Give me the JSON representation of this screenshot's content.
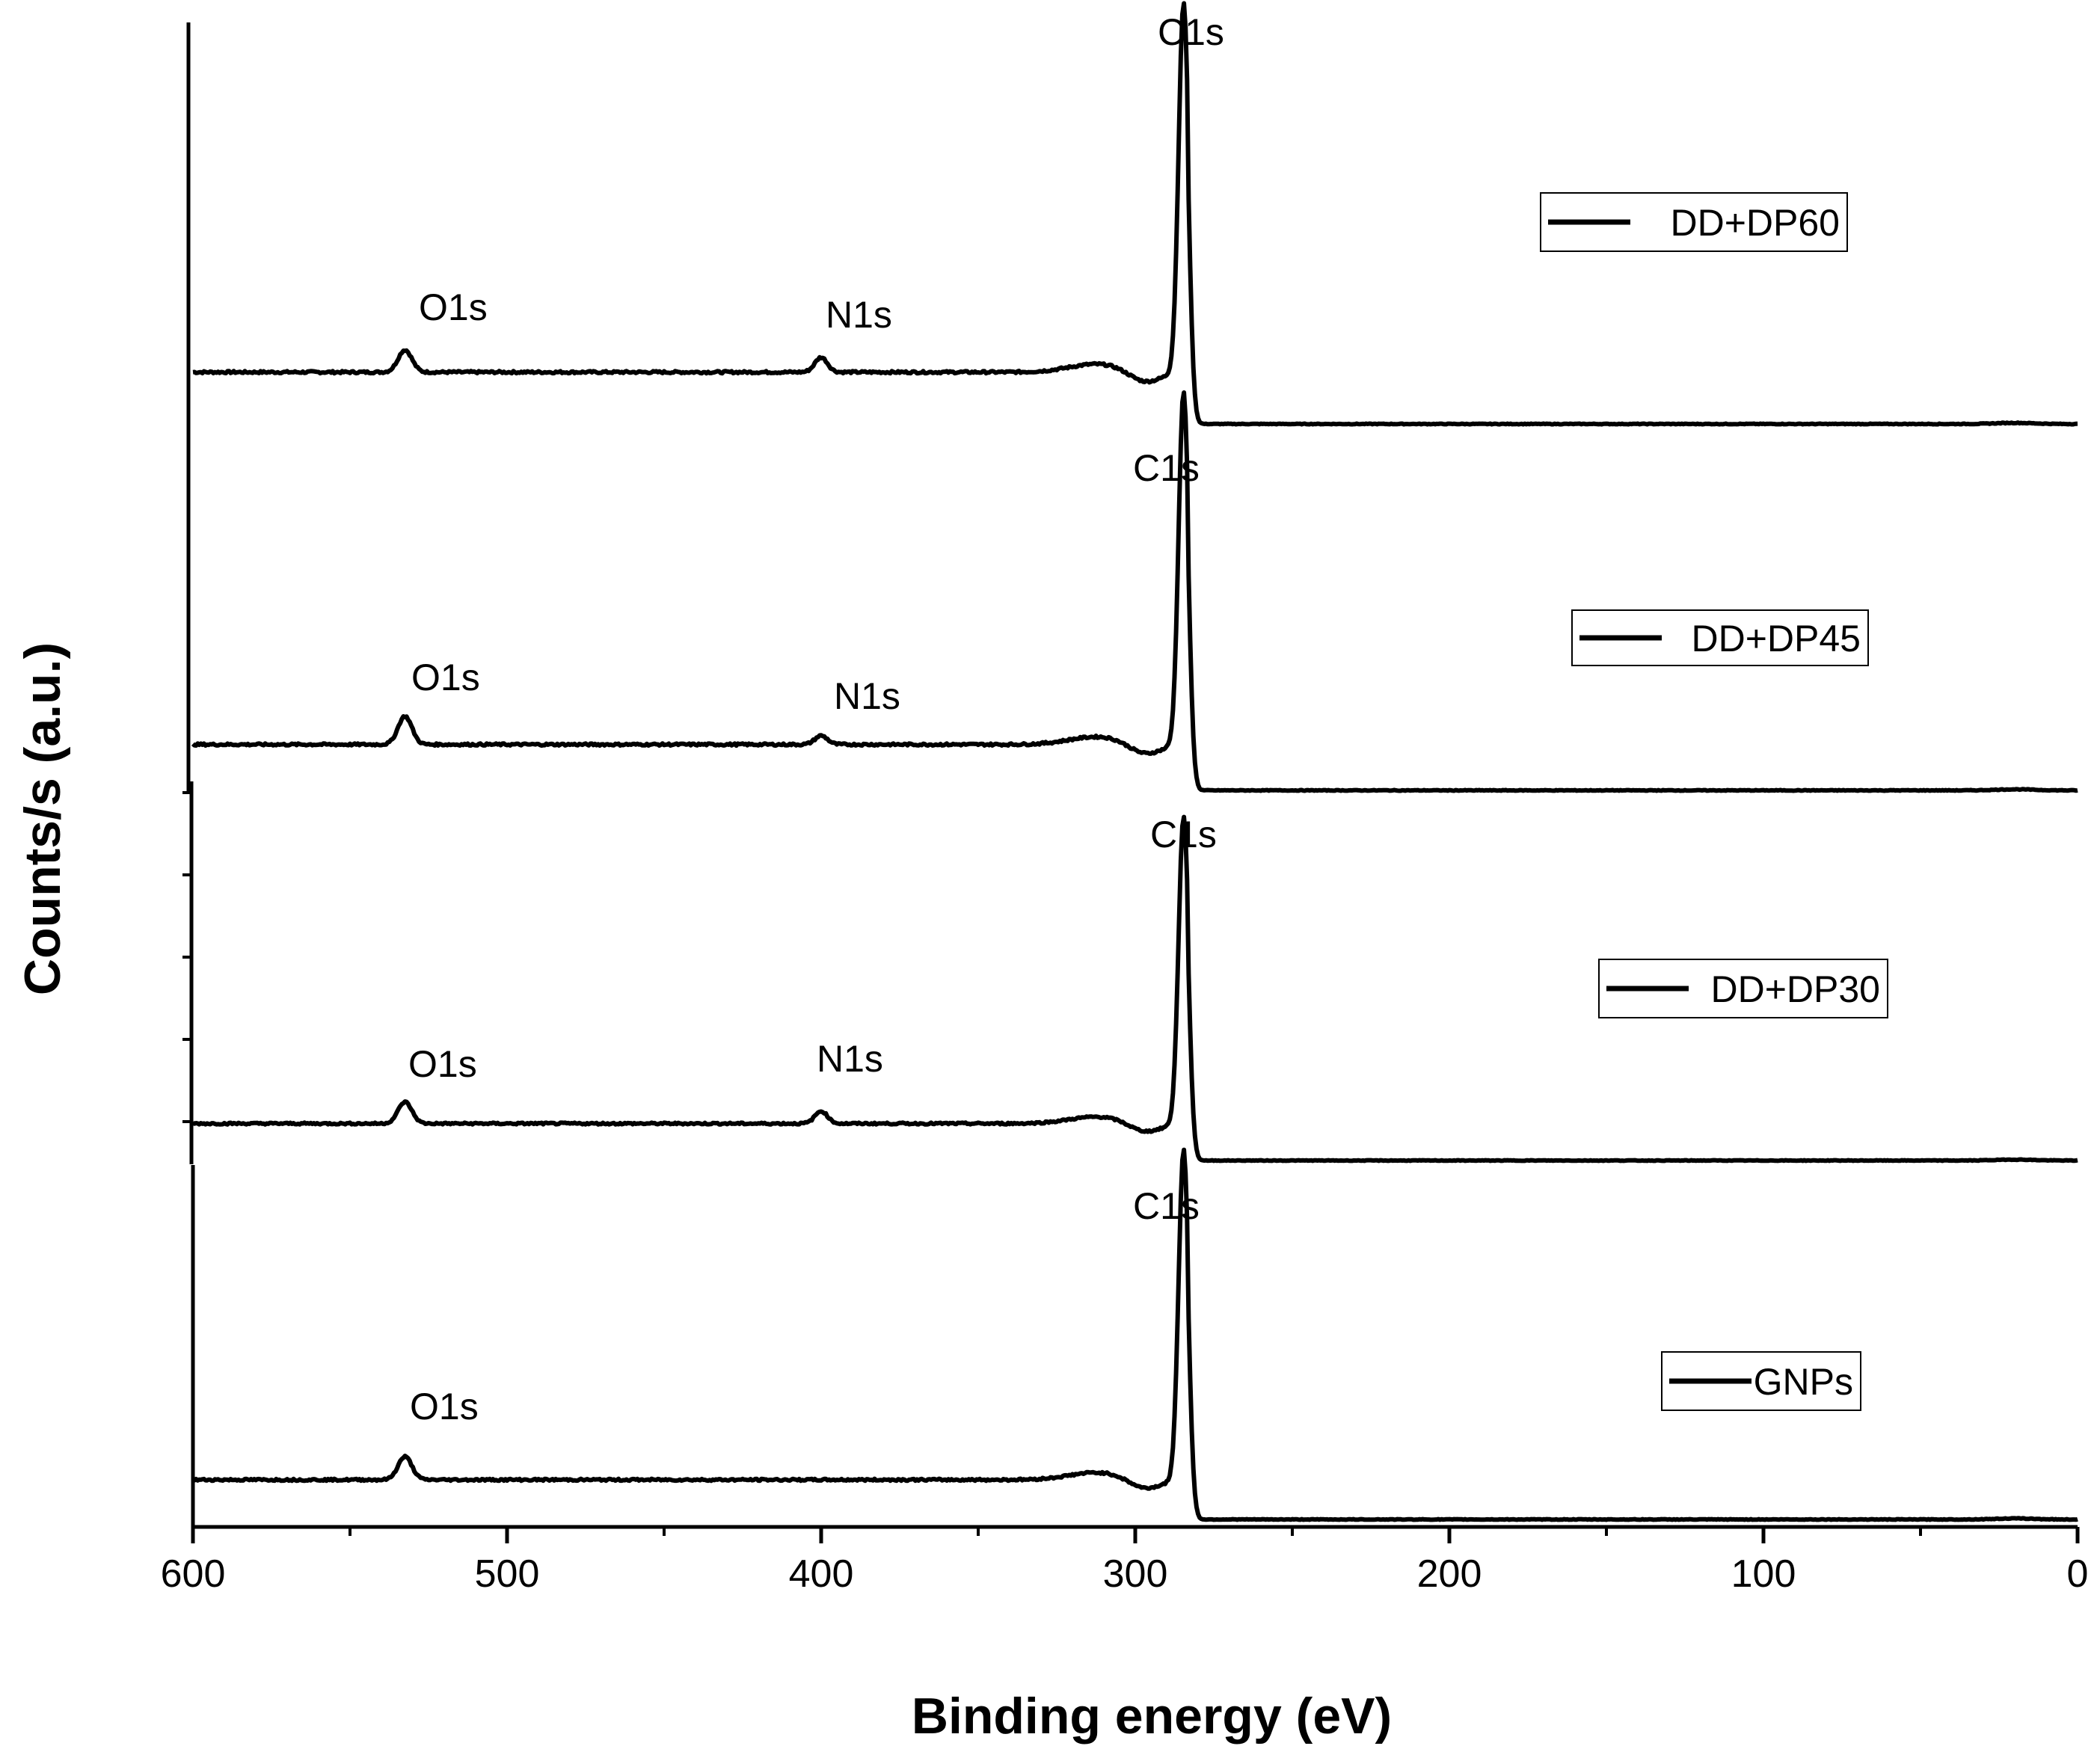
{
  "chart_data": {
    "type": "line",
    "title": "",
    "xlabel": "Binding energy (eV)",
    "ylabel": "Counts/s (a.u.)",
    "xlim": [
      600,
      0
    ],
    "x_reversed": true,
    "x_ticks": [
      600,
      500,
      400,
      300,
      200,
      100,
      0
    ],
    "x_tick_labels": [
      "600",
      "500",
      "400",
      "300",
      "200",
      "100",
      "0"
    ],
    "y_tick_labels": false,
    "grid": false,
    "stacked_offset_panels": true,
    "legend_placement": "right, one box per panel",
    "series": [
      {
        "name": "DD+DP60",
        "baseline_low_energy": 0.0,
        "baseline_high_energy": 0.14,
        "peaks": [
          {
            "label": "C1s",
            "energy": 284.6,
            "height": 1.0
          },
          {
            "label": "N1s",
            "energy": 400.0,
            "height": 0.04
          },
          {
            "label": "O1s",
            "energy": 532.5,
            "height": 0.06
          }
        ]
      },
      {
        "name": "DD+DP45",
        "baseline_low_energy": 0.0,
        "baseline_high_energy": 0.13,
        "peaks": [
          {
            "label": "C1s",
            "energy": 284.6,
            "height": 1.0
          },
          {
            "label": "N1s",
            "energy": 400.0,
            "height": 0.025
          },
          {
            "label": "O1s",
            "energy": 532.5,
            "height": 0.08
          }
        ]
      },
      {
        "name": "DD+DP30",
        "baseline_low_energy": 0.0,
        "baseline_high_energy": 0.12,
        "peaks": [
          {
            "label": "C1s",
            "energy": 284.6,
            "height": 1.0
          },
          {
            "label": "N1s",
            "energy": 400.0,
            "height": 0.04
          },
          {
            "label": "O1s",
            "energy": 532.5,
            "height": 0.07
          }
        ]
      },
      {
        "name": "GNPs",
        "baseline_low_energy": 0.0,
        "baseline_high_energy": 0.12,
        "peaks": [
          {
            "label": "C1s",
            "energy": 284.6,
            "height": 1.0
          },
          {
            "label": "O1s",
            "energy": 532.5,
            "height": 0.07
          }
        ]
      }
    ],
    "peak_labels": [
      "C1s",
      "N1s",
      "O1s"
    ]
  }
}
